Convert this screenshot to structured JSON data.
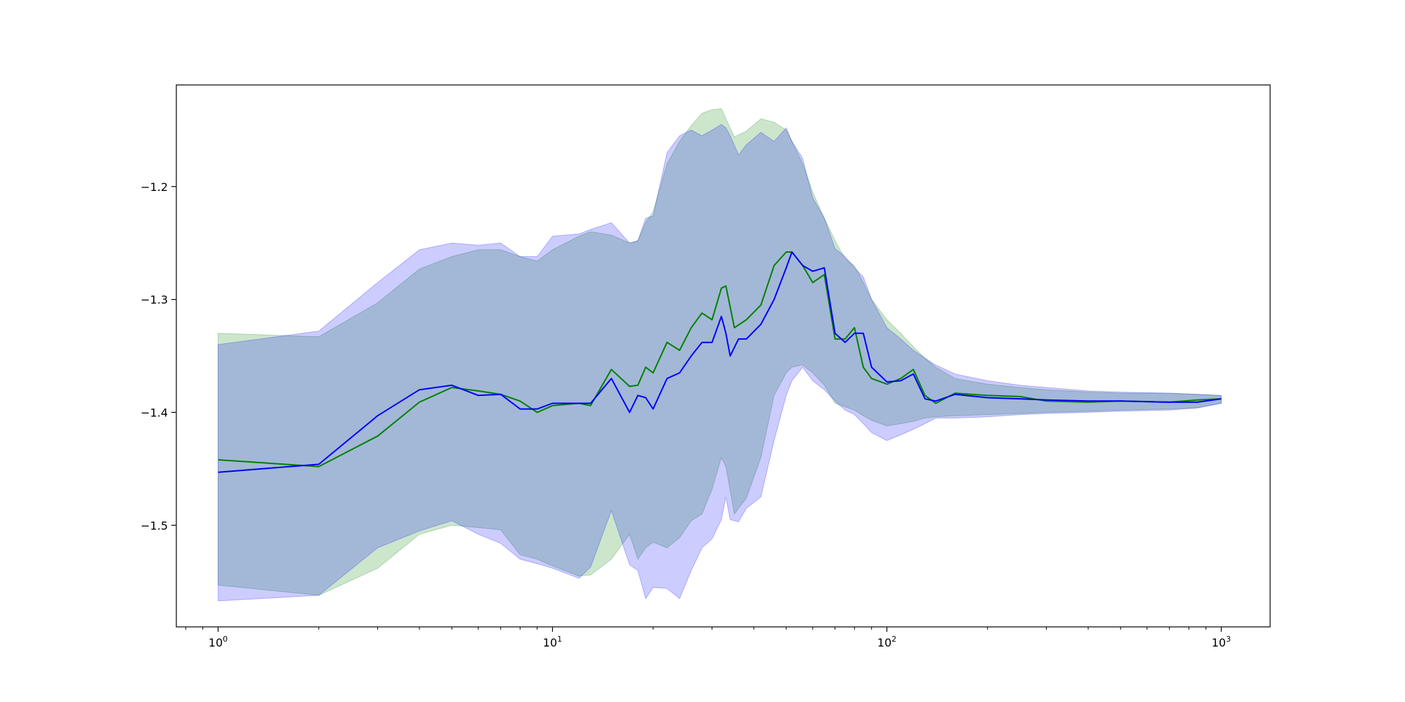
{
  "chart_data": {
    "type": "line",
    "title": "",
    "xlabel": "",
    "ylabel": "",
    "xscale": "log",
    "xlim": [
      0.75,
      1400
    ],
    "ylim": [
      -1.59,
      -1.11
    ],
    "grid": false,
    "legend": "none",
    "x_ticks": [
      {
        "value": 1,
        "base": "10",
        "exp": "0"
      },
      {
        "value": 10,
        "base": "10",
        "exp": "1"
      },
      {
        "value": 100,
        "base": "10",
        "exp": "2"
      },
      {
        "value": 1000,
        "base": "10",
        "exp": "3"
      }
    ],
    "y_ticks": [
      {
        "value": -1.2,
        "label": "−1.2"
      },
      {
        "value": -1.3,
        "label": "−1.3"
      },
      {
        "value": -1.4,
        "label": "−1.4"
      },
      {
        "value": -1.5,
        "label": "−1.5"
      }
    ],
    "series": [
      {
        "color": "#008000",
        "band_color": "#008000",
        "x": [
          1,
          2,
          3,
          4,
          5,
          6,
          7,
          8,
          9,
          10,
          12,
          13,
          15,
          17,
          18,
          19,
          20,
          22,
          24,
          26,
          28,
          30,
          32,
          33,
          35,
          38,
          42,
          46,
          50,
          52,
          56,
          60,
          65,
          70,
          75,
          80,
          85,
          90,
          100,
          110,
          120,
          130,
          140,
          160,
          200,
          250,
          300,
          400,
          500,
          700,
          850,
          1000
        ],
        "y": [
          -1.442,
          -1.448,
          -1.421,
          -1.391,
          -1.378,
          -1.381,
          -1.384,
          -1.39,
          -1.4,
          -1.394,
          -1.392,
          -1.394,
          -1.362,
          -1.377,
          -1.376,
          -1.36,
          -1.365,
          -1.338,
          -1.345,
          -1.325,
          -1.312,
          -1.318,
          -1.29,
          -1.288,
          -1.325,
          -1.318,
          -1.305,
          -1.27,
          -1.258,
          -1.258,
          -1.27,
          -1.285,
          -1.278,
          -1.335,
          -1.335,
          -1.325,
          -1.36,
          -1.37,
          -1.375,
          -1.37,
          -1.362,
          -1.385,
          -1.392,
          -1.383,
          -1.385,
          -1.386,
          -1.39,
          -1.391,
          -1.39,
          -1.391,
          -1.389,
          -1.388
        ],
        "upper": [
          -1.33,
          -1.333,
          -1.303,
          -1.273,
          -1.262,
          -1.256,
          -1.256,
          -1.262,
          -1.266,
          -1.256,
          -1.244,
          -1.24,
          -1.243,
          -1.25,
          -1.248,
          -1.232,
          -1.222,
          -1.18,
          -1.16,
          -1.146,
          -1.135,
          -1.132,
          -1.131,
          -1.14,
          -1.156,
          -1.151,
          -1.14,
          -1.143,
          -1.15,
          -1.16,
          -1.18,
          -1.205,
          -1.228,
          -1.248,
          -1.264,
          -1.27,
          -1.285,
          -1.3,
          -1.318,
          -1.33,
          -1.342,
          -1.352,
          -1.36,
          -1.37,
          -1.375,
          -1.378,
          -1.38,
          -1.382,
          -1.383,
          -1.383,
          -1.384,
          -1.385
        ],
        "lower": [
          -1.553,
          -1.562,
          -1.538,
          -1.508,
          -1.5,
          -1.502,
          -1.504,
          -1.526,
          -1.53,
          -1.536,
          -1.545,
          -1.544,
          -1.53,
          -1.508,
          -1.53,
          -1.52,
          -1.515,
          -1.52,
          -1.511,
          -1.496,
          -1.49,
          -1.468,
          -1.44,
          -1.448,
          -1.49,
          -1.476,
          -1.44,
          -1.385,
          -1.365,
          -1.36,
          -1.358,
          -1.365,
          -1.376,
          -1.392,
          -1.395,
          -1.398,
          -1.403,
          -1.407,
          -1.412,
          -1.41,
          -1.408,
          -1.405,
          -1.404,
          -1.403,
          -1.402,
          -1.401,
          -1.4,
          -1.399,
          -1.398,
          -1.397,
          -1.396,
          -1.392
        ]
      },
      {
        "color": "#0000ff",
        "band_color": "#0000ff",
        "x": [
          1,
          2,
          3,
          4,
          5,
          6,
          7,
          8,
          9,
          10,
          12,
          13,
          15,
          17,
          18,
          19,
          20,
          22,
          24,
          26,
          28,
          30,
          32,
          33,
          34,
          36,
          38,
          42,
          46,
          50,
          52,
          56,
          60,
          65,
          70,
          75,
          80,
          85,
          90,
          100,
          110,
          120,
          130,
          140,
          160,
          200,
          250,
          300,
          400,
          500,
          700,
          850,
          1000
        ],
        "y": [
          -1.453,
          -1.446,
          -1.403,
          -1.38,
          -1.376,
          -1.385,
          -1.384,
          -1.397,
          -1.397,
          -1.392,
          -1.392,
          -1.392,
          -1.37,
          -1.4,
          -1.385,
          -1.387,
          -1.397,
          -1.37,
          -1.365,
          -1.35,
          -1.338,
          -1.338,
          -1.315,
          -1.33,
          -1.35,
          -1.335,
          -1.335,
          -1.322,
          -1.3,
          -1.272,
          -1.258,
          -1.27,
          -1.275,
          -1.272,
          -1.33,
          -1.338,
          -1.33,
          -1.33,
          -1.36,
          -1.373,
          -1.372,
          -1.366,
          -1.388,
          -1.39,
          -1.384,
          -1.387,
          -1.388,
          -1.389,
          -1.39,
          -1.39,
          -1.391,
          -1.391,
          -1.388
        ],
        "upper": [
          -1.34,
          -1.328,
          -1.285,
          -1.256,
          -1.25,
          -1.252,
          -1.25,
          -1.262,
          -1.262,
          -1.244,
          -1.242,
          -1.238,
          -1.232,
          -1.25,
          -1.248,
          -1.228,
          -1.226,
          -1.17,
          -1.155,
          -1.15,
          -1.155,
          -1.15,
          -1.145,
          -1.148,
          -1.155,
          -1.172,
          -1.163,
          -1.152,
          -1.16,
          -1.148,
          -1.16,
          -1.175,
          -1.21,
          -1.228,
          -1.255,
          -1.262,
          -1.272,
          -1.28,
          -1.3,
          -1.325,
          -1.335,
          -1.345,
          -1.352,
          -1.358,
          -1.366,
          -1.372,
          -1.376,
          -1.378,
          -1.381,
          -1.382,
          -1.383,
          -1.384,
          -1.385
        ],
        "lower": [
          -1.567,
          -1.562,
          -1.52,
          -1.505,
          -1.496,
          -1.508,
          -1.516,
          -1.53,
          -1.534,
          -1.538,
          -1.547,
          -1.537,
          -1.487,
          -1.535,
          -1.54,
          -1.565,
          -1.555,
          -1.556,
          -1.565,
          -1.54,
          -1.52,
          -1.512,
          -1.495,
          -1.475,
          -1.495,
          -1.497,
          -1.485,
          -1.475,
          -1.425,
          -1.385,
          -1.372,
          -1.36,
          -1.372,
          -1.38,
          -1.39,
          -1.398,
          -1.402,
          -1.41,
          -1.418,
          -1.425,
          -1.42,
          -1.415,
          -1.41,
          -1.405,
          -1.405,
          -1.404,
          -1.402,
          -1.401,
          -1.4,
          -1.399,
          -1.398,
          -1.396,
          -1.392
        ]
      }
    ]
  }
}
